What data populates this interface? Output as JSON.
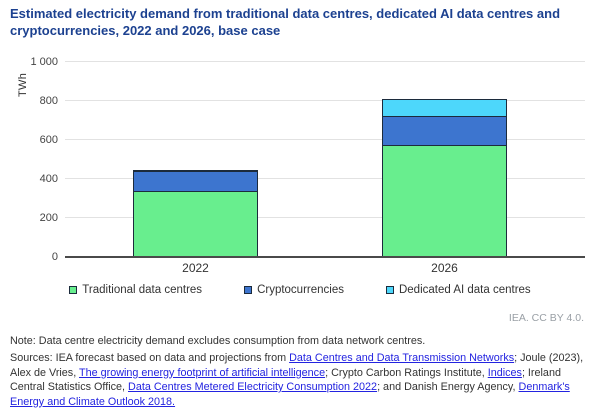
{
  "title": "Estimated electricity demand from traditional data centres, dedicated AI data centres and cryptocurrencies, 2022 and 2026, base case",
  "credit": "IEA. CC BY 4.0.",
  "chart_data": {
    "type": "bar",
    "stacked": true,
    "categories": [
      "2022",
      "2026"
    ],
    "series": [
      {
        "name": "Traditional data centres",
        "color": "#68ee8e",
        "values": [
          340,
          575
        ]
      },
      {
        "name": "Cryptocurrencies",
        "color": "#3d75cf",
        "values": [
          110,
          155
        ]
      },
      {
        "name": "Dedicated AI data centres",
        "color": "#4dd7fb",
        "values": [
          10,
          90
        ]
      }
    ],
    "ylabel": "TWh",
    "ylim": [
      0,
      1000
    ],
    "yticks": [
      0,
      200,
      400,
      600,
      800,
      1000
    ],
    "ytick_labels": [
      "0",
      "200",
      "400",
      "600",
      "800",
      "1 000"
    ],
    "grid": true,
    "legend_position": "bottom"
  },
  "footer": {
    "note": "Note: Data centre electricity demand excludes consumption from data network centres.",
    "sources_segments": [
      {
        "text": "Sources: IEA forecast based on data and projections from ",
        "link": false
      },
      {
        "text": "Data Centres and Data Transmission Networks",
        "link": true
      },
      {
        "text": "; Joule (2023), Alex de Vries, ",
        "link": false
      },
      {
        "text": "The growing energy footprint of artificial intelligence",
        "link": true
      },
      {
        "text": "; Crypto Carbon Ratings Institute, ",
        "link": false
      },
      {
        "text": "Indices",
        "link": true
      },
      {
        "text": "; Ireland Central Statistics Office, ",
        "link": false
      },
      {
        "text": "Data Centres Metered Electricity Consumption 2022",
        "link": true
      },
      {
        "text": "; and Danish Energy Agency, ",
        "link": false
      },
      {
        "text": "Denmark's Energy and Climate Outlook 2018.",
        "link": true
      }
    ]
  }
}
